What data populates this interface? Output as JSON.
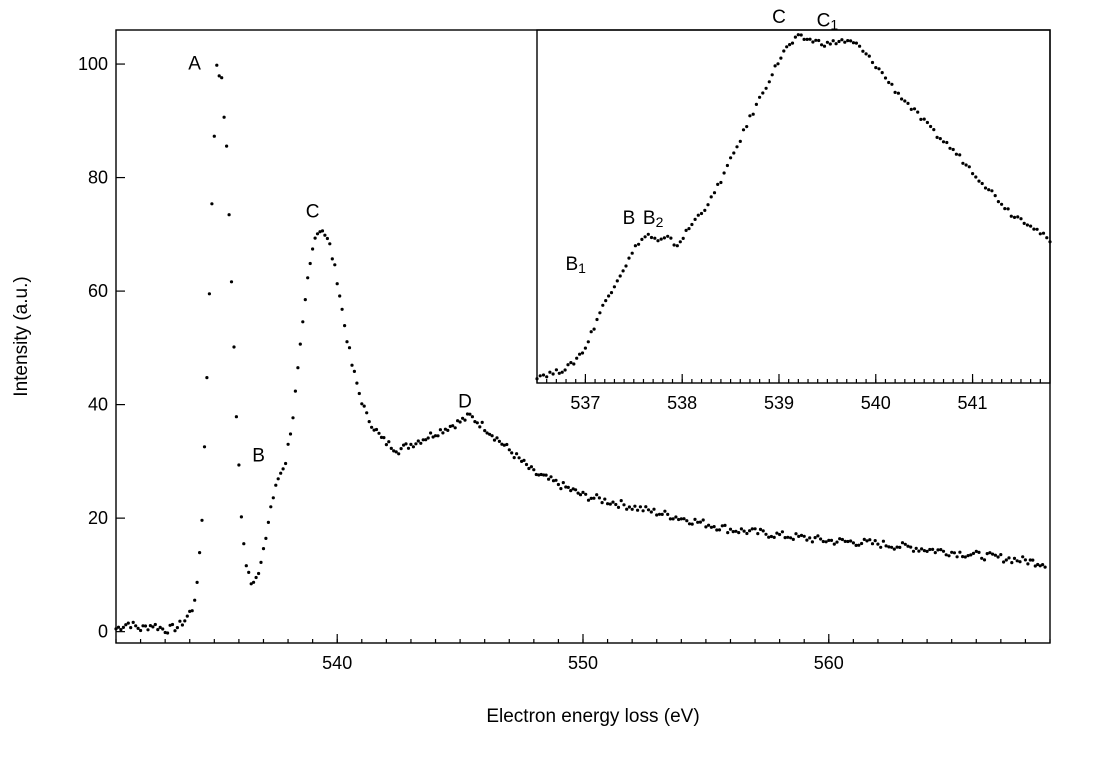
{
  "chart_data": [
    {
      "id": "main",
      "type": "scatter",
      "xlabel": "Electron energy loss (eV)",
      "ylabel": "Intensity (a.u.)",
      "xlim": [
        531,
        569
      ],
      "ylim": [
        -2,
        106
      ],
      "xticks": [
        540,
        550,
        560
      ],
      "yticks": [
        0,
        20,
        40,
        60,
        80,
        100
      ],
      "grid": false,
      "points": [
        [
          531.0,
          0.5
        ],
        [
          531.5,
          1.5
        ],
        [
          532.0,
          0.5
        ],
        [
          532.5,
          1.2
        ],
        [
          533.0,
          0.3
        ],
        [
          533.5,
          0.8
        ],
        [
          533.8,
          2
        ],
        [
          534.1,
          4
        ],
        [
          534.3,
          8
        ],
        [
          534.5,
          20
        ],
        [
          534.7,
          45
        ],
        [
          534.9,
          75
        ],
        [
          535.1,
          100
        ],
        [
          535.3,
          97
        ],
        [
          535.5,
          85
        ],
        [
          535.7,
          62
        ],
        [
          535.9,
          38
        ],
        [
          536.1,
          20
        ],
        [
          536.3,
          12
        ],
        [
          536.5,
          9
        ],
        [
          536.8,
          10
        ],
        [
          537.0,
          14
        ],
        [
          537.3,
          22
        ],
        [
          537.6,
          27
        ],
        [
          537.9,
          30
        ],
        [
          538.2,
          38
        ],
        [
          538.5,
          50
        ],
        [
          538.8,
          62
        ],
        [
          539.1,
          70
        ],
        [
          539.4,
          71
        ],
        [
          539.7,
          68
        ],
        [
          540.0,
          62
        ],
        [
          540.3,
          54
        ],
        [
          540.6,
          47
        ],
        [
          540.9,
          42
        ],
        [
          541.2,
          38
        ],
        [
          541.5,
          36
        ],
        [
          541.8,
          34
        ],
        [
          542.1,
          33
        ],
        [
          542.5,
          32
        ],
        [
          543.0,
          33
        ],
        [
          543.5,
          34
        ],
        [
          544.0,
          35
        ],
        [
          544.5,
          36
        ],
        [
          545.0,
          37
        ],
        [
          545.4,
          38
        ],
        [
          546.0,
          36
        ],
        [
          546.5,
          34
        ],
        [
          547.0,
          32
        ],
        [
          547.5,
          30
        ],
        [
          548.0,
          28
        ],
        [
          548.5,
          27
        ],
        [
          549.0,
          26
        ],
        [
          549.5,
          25
        ],
        [
          550.0,
          24
        ],
        [
          551.0,
          23
        ],
        [
          552.0,
          22
        ],
        [
          553.0,
          21
        ],
        [
          554.0,
          20
        ],
        [
          555.0,
          19
        ],
        [
          556.0,
          18
        ],
        [
          557.0,
          17.5
        ],
        [
          558.0,
          17
        ],
        [
          559.0,
          16.5
        ],
        [
          560.0,
          16
        ],
        [
          561.0,
          15.8
        ],
        [
          562.0,
          15.5
        ],
        [
          563.0,
          15
        ],
        [
          564.0,
          14.5
        ],
        [
          565.0,
          14
        ],
        [
          566.0,
          13.5
        ],
        [
          567.0,
          13
        ],
        [
          568.0,
          12.5
        ],
        [
          568.8,
          12
        ]
      ],
      "annotations": [
        {
          "text": "A",
          "x": 534.2,
          "y": 99
        },
        {
          "text": "B",
          "x": 536.8,
          "y": 30
        },
        {
          "text": "C",
          "x": 539.0,
          "y": 73
        },
        {
          "text": "D",
          "x": 545.2,
          "y": 39.5
        }
      ]
    },
    {
      "id": "inset",
      "type": "scatter",
      "xlabel": "",
      "ylabel": "",
      "xlim": [
        536.5,
        541.8
      ],
      "yticks": [],
      "xticks": [
        537,
        538,
        539,
        540,
        541
      ],
      "ylim": [
        0,
        1
      ],
      "grid": false,
      "points": [
        [
          536.5,
          0.02
        ],
        [
          536.7,
          0.03
        ],
        [
          536.85,
          0.05
        ],
        [
          537.0,
          0.1
        ],
        [
          537.15,
          0.2
        ],
        [
          537.3,
          0.28
        ],
        [
          537.45,
          0.35
        ],
        [
          537.55,
          0.4
        ],
        [
          537.65,
          0.42
        ],
        [
          537.75,
          0.4
        ],
        [
          537.85,
          0.41
        ],
        [
          537.95,
          0.39
        ],
        [
          538.1,
          0.45
        ],
        [
          538.3,
          0.52
        ],
        [
          538.5,
          0.63
        ],
        [
          538.7,
          0.75
        ],
        [
          538.9,
          0.86
        ],
        [
          539.05,
          0.94
        ],
        [
          539.2,
          0.98
        ],
        [
          539.35,
          0.97
        ],
        [
          539.5,
          0.96
        ],
        [
          539.65,
          0.97
        ],
        [
          539.8,
          0.96
        ],
        [
          540.0,
          0.9
        ],
        [
          540.2,
          0.83
        ],
        [
          540.4,
          0.77
        ],
        [
          540.6,
          0.71
        ],
        [
          540.8,
          0.66
        ],
        [
          541.0,
          0.6
        ],
        [
          541.2,
          0.54
        ],
        [
          541.4,
          0.48
        ],
        [
          541.6,
          0.45
        ],
        [
          541.8,
          0.4
        ]
      ],
      "annotations": [
        {
          "text": "C",
          "x": 539.0,
          "y": 1.02
        },
        {
          "text": "C",
          "sub": "1",
          "x": 539.5,
          "y": 1.01
        },
        {
          "text": "B",
          "x": 537.45,
          "y": 0.45
        },
        {
          "text": "B",
          "sub": "2",
          "x": 537.7,
          "y": 0.45
        },
        {
          "text": "B",
          "sub": "1",
          "x": 536.9,
          "y": 0.32
        }
      ]
    }
  ]
}
